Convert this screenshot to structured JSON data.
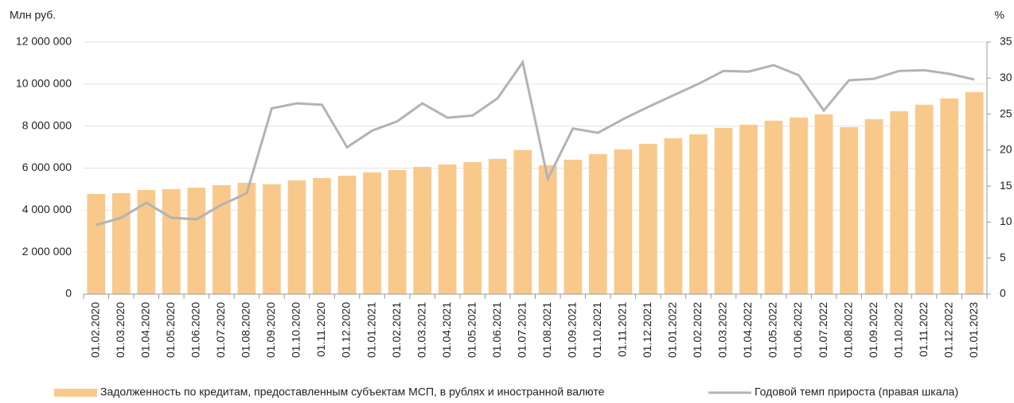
{
  "chart_data": {
    "type": "bar",
    "y_label": "Млн руб.",
    "y2_label": "%",
    "categories": [
      "01.02.2020",
      "01.03.2020",
      "01.04.2020",
      "01.05.2020",
      "01.06.2020",
      "01.07.2020",
      "01.08.2020",
      "01.09.2020",
      "01.10.2020",
      "01.11.2020",
      "01.12.2020",
      "01.01.2021",
      "01.02.2021",
      "01.03.2021",
      "01.04.2021",
      "01.05.2021",
      "01.06.2021",
      "01.07.2021",
      "01.08.2021",
      "01.09.2021",
      "01.10.2021",
      "01.11.2021",
      "01.12.2021",
      "01.01.2022",
      "01.02.2022",
      "01.03.2022",
      "01.04.2022",
      "01.05.2022",
      "01.06.2022",
      "01.07.2022",
      "01.08.2022",
      "01.09.2022",
      "01.10.2022",
      "01.11.2022",
      "01.12.2022",
      "01.01.2023"
    ],
    "series": [
      {
        "name": "Задолженность по кредитам, предоставленным субъектам МСП, в рублях и иностранной валюте",
        "type": "bar",
        "color": "#f9c98b",
        "values": [
          4770000,
          4810000,
          4960000,
          5000000,
          5070000,
          5190000,
          5300000,
          5230000,
          5420000,
          5530000,
          5640000,
          5800000,
          5910000,
          6060000,
          6170000,
          6290000,
          6440000,
          6860000,
          6140000,
          6400000,
          6670000,
          6890000,
          7160000,
          7420000,
          7610000,
          7920000,
          8070000,
          8260000,
          8410000,
          8560000,
          7950000,
          8330000,
          8710000,
          9020000,
          9320000,
          9620000
        ]
      },
      {
        "name": "Годовой темп прироста (правая шкала)",
        "type": "line",
        "axis": "y2",
        "color": "#b3b3b3",
        "values": [
          9.6,
          10.6,
          12.7,
          10.6,
          10.4,
          12.4,
          14.0,
          25.8,
          26.5,
          26.3,
          20.4,
          22.7,
          24.0,
          26.5,
          24.5,
          24.8,
          27.2,
          32.2,
          16.0,
          23.0,
          22.4,
          24.3,
          26.0,
          27.6,
          29.2,
          31.0,
          30.9,
          31.8,
          30.4,
          25.5,
          29.7,
          29.9,
          31.0,
          31.1,
          30.6,
          29.8
        ]
      }
    ],
    "ylim": [
      0,
      12000000
    ],
    "yticks": [
      {
        "value": 0,
        "label": "0"
      },
      {
        "value": 2000000,
        "label": "2 000 000"
      },
      {
        "value": 4000000,
        "label": "4 000 000"
      },
      {
        "value": 6000000,
        "label": "6 000 000"
      },
      {
        "value": 8000000,
        "label": "8 000 000"
      },
      {
        "value": 10000000,
        "label": "10 000 000"
      },
      {
        "value": 12000000,
        "label": "12 000 000"
      }
    ],
    "y2lim": [
      0,
      35
    ],
    "y2ticks": [
      0,
      5,
      10,
      15,
      20,
      25,
      30,
      35
    ],
    "grid": true,
    "legend": "bottom"
  }
}
